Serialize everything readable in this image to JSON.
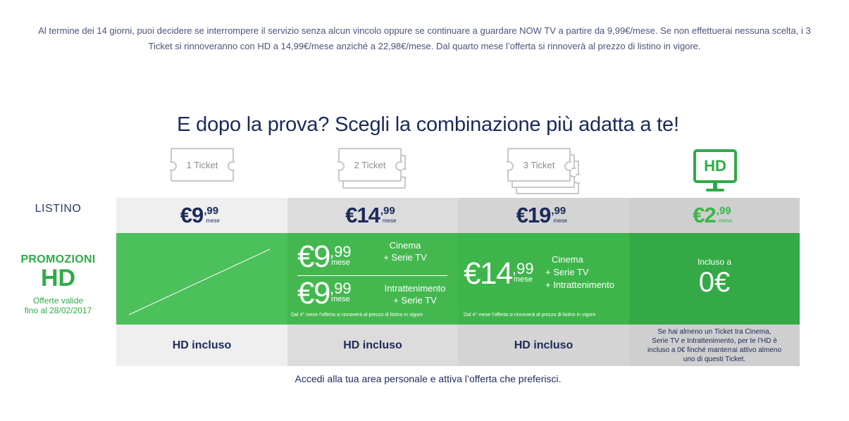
{
  "intro": {
    "line1": "Al termine dei 14 giorni, puoi decidere se interrompere il servizio senza alcun vincolo oppure se continuare a guardare NOW TV a partire da 9,99€/mese. Se non effettuerai nessuna scelta, i 3",
    "line2": "Ticket si rinnoveranno con HD a 14,99€/mese anziché a 22,98€/mese. Dal quarto mese l’offerta si rinnoverà al prezzo di listino in vigore."
  },
  "headline": "E dopo la prova? Scegli la combinazione più adatta a te!",
  "columns": [
    {
      "icon": "ticket-icon",
      "label": "1 Ticket"
    },
    {
      "icon": "two-tickets-icon",
      "label": "2 Ticket"
    },
    {
      "icon": "three-tickets-icon",
      "label": "3 Ticket"
    },
    {
      "icon": "hd-monitor-icon",
      "label": "HD"
    }
  ],
  "row_labels": {
    "listino": "LISTINO",
    "promo_line1": "PROMOZIONI",
    "promo_line2": "HD",
    "promo_validity_1": "Offerte valide",
    "promo_validity_2": "fino al 28/02/2017"
  },
  "listino_prices": [
    {
      "euro": "€9",
      "cents": ",99",
      "unit": "mese"
    },
    {
      "euro": "€14",
      "cents": ",99",
      "unit": "mese"
    },
    {
      "euro": "€19",
      "cents": ",99",
      "unit": "mese"
    },
    {
      "euro": "€2",
      "cents": ",99",
      "unit": "mese"
    }
  ],
  "promo": {
    "col2": {
      "offer1": {
        "euro": "€9",
        "cents": ",99",
        "unit": "mese",
        "desc1": "Cinema",
        "desc2": "+ Serie TV"
      },
      "offer2": {
        "euro": "€9",
        "cents": ",99",
        "unit": "mese",
        "desc1": "Intrattenimento",
        "desc2": "+ Serie TV"
      },
      "note": "Dal 4° mese l’offerta si rinnoverà al prezzo di listino in vigore"
    },
    "col3": {
      "euro": "€14",
      "cents": ",99",
      "unit": "mese",
      "desc1": "Cinema",
      "desc2": "+ Serie TV",
      "desc3": "+ Intrattenimento",
      "note": "Dal 4° mese l’offerta si rinnoverà al prezzo di listino in vigore"
    },
    "col4": {
      "label": "Incluso a",
      "price": "0€"
    }
  },
  "bottom_row": {
    "col1": "HD incluso",
    "col2": "HD incluso",
    "col3": "HD incluso",
    "col4_lines": [
      "Se hai almeno un Ticket tra Cinema,",
      "Serie TV e Intrattenimento, per te l’HD è",
      "incluso a 0€ finché manterrai attivo almeno",
      "uno di questi Ticket."
    ]
  },
  "footer": "Accedi alla tua area personale e attiva l’offerta che preferisci.",
  "colors": {
    "navy": "#1b2a59",
    "green": "#3db54a",
    "dark_green": "#2eab48",
    "hd_green_text": "#3db54a",
    "light_gray": "#efefef",
    "mid_gray": "#dcdcdc",
    "dark_gray": "#cfcfcf"
  }
}
